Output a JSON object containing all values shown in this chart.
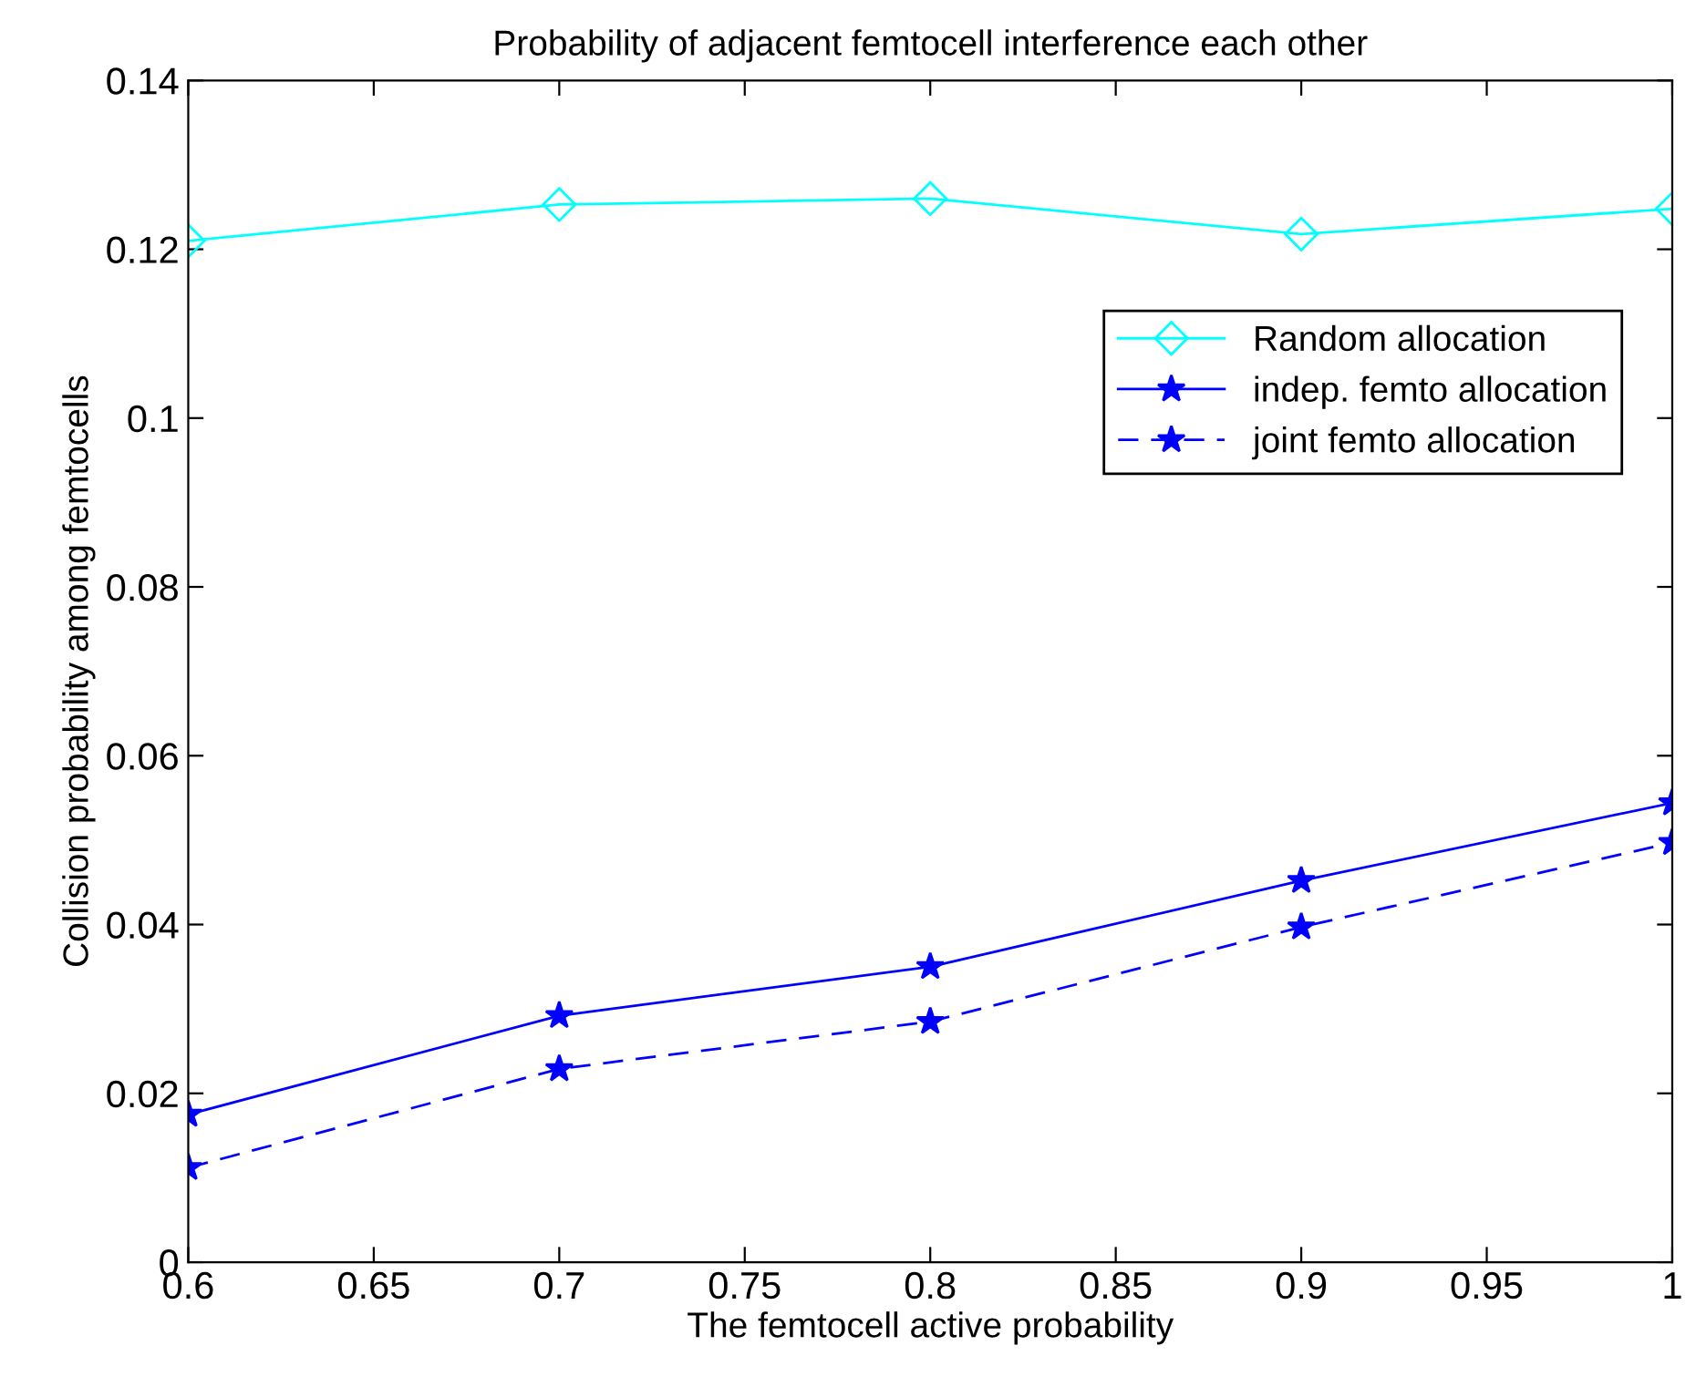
{
  "chart_data": {
    "type": "line",
    "title": "Probability of adjacent femtocell interference each other",
    "xlabel": "The femtocell active probability",
    "ylabel": "Collision probability among femtocells",
    "x": [
      0.6,
      0.7,
      0.8,
      0.9,
      1.0
    ],
    "series": [
      {
        "name": "Random allocation",
        "color": "#00ffff",
        "marker": "diamond",
        "line_style": "solid",
        "values": [
          0.121,
          0.1253,
          0.126,
          0.1218,
          0.1248
        ]
      },
      {
        "name": "indep. femto allocation",
        "color": "#0000ff",
        "marker": "star",
        "line_style": "solid",
        "values": [
          0.0175,
          0.0292,
          0.035,
          0.0452,
          0.0544
        ]
      },
      {
        "name": "joint femto allocation",
        "color": "#0000ff",
        "marker": "star",
        "line_style": "dashed",
        "values": [
          0.0112,
          0.0229,
          0.0285,
          0.0397,
          0.0497
        ]
      }
    ],
    "xlim": [
      0.6,
      1
    ],
    "xticks": [
      0.6,
      0.65,
      0.7,
      0.75,
      0.8,
      0.85,
      0.9,
      0.95,
      1
    ],
    "ylim": [
      0,
      0.14
    ],
    "yticks": [
      0,
      0.02,
      0.04,
      0.06,
      0.08,
      0.1,
      0.12,
      0.14
    ],
    "grid": false,
    "legend": "top right"
  }
}
